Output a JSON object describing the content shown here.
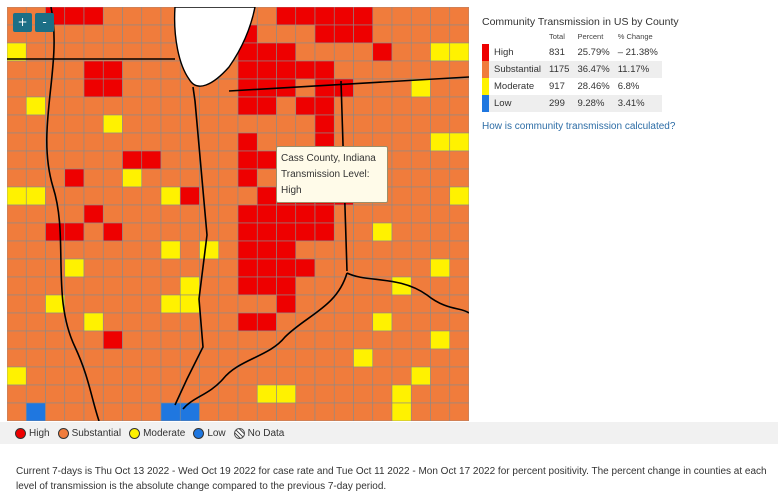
{
  "zoom": {
    "in_label": "+",
    "out_label": "-"
  },
  "tooltip": {
    "county": "Cass County, Indiana",
    "level_line": "Transmission Level: High"
  },
  "legend_panel": {
    "title": "Community Transmission in US by County",
    "columns": [
      "",
      "Total",
      "Percent",
      "% Change"
    ],
    "rows": [
      {
        "level": "High",
        "total": "831",
        "percent": "25.79%",
        "change": "– 21.38%",
        "color": "#ee0000"
      },
      {
        "level": "Substantial",
        "total": "1175",
        "percent": "36.47%",
        "change": "11.17%",
        "color": "#f07c3c"
      },
      {
        "level": "Moderate",
        "total": "917",
        "percent": "28.46%",
        "change": "6.8%",
        "color": "#fff200"
      },
      {
        "level": "Low",
        "total": "299",
        "percent": "9.28%",
        "change": "3.41%",
        "color": "#1f77e0"
      }
    ],
    "link": "How is community transmission calculated?"
  },
  "map_legend": {
    "items": [
      {
        "label": "High",
        "color": "#ee0000"
      },
      {
        "label": "Substantial",
        "color": "#f07c3c"
      },
      {
        "label": "Moderate",
        "color": "#fff200"
      },
      {
        "label": "Low",
        "color": "#1f77e0"
      },
      {
        "label": "No Data",
        "pattern": "hatched"
      }
    ]
  },
  "footnote": "Current 7-days is Thu Oct 13 2022 - Wed Oct 19 2022 for case rate and Tue Oct 11 2022 - Mon Oct 17 2022 for percent positivity. The percent change in counties at each level of transmission is the absolute change compared to the previous 7-day period.",
  "colors": {
    "high": "#ee0000",
    "substantial": "#f07c3c",
    "moderate": "#fff200",
    "low": "#1f77e0",
    "county_border": "#8a8a8a",
    "state_border": "#000000",
    "zoom_button": "#1c6f86"
  },
  "map_cells": [
    "SSHHHSSSSHHHSSHHHHHSSSSS",
    "SSSSSSSSSSSHHSSSHHHSSSSS",
    "MSSSSSSSSSSSHHHSSSSHSSMM",
    "SSSSHHSSSSSSHHHHHSSSSSSS",
    "SSSSHHSSSSSSHHHSHHSSSMSS",
    "SMSSSSSSSSSSHHSHHSSSSSSS",
    "SSSSSMSSSSSSSSSSHSSSSSSS",
    "SSSSSSSSSSSSHSSSHSSSSSMM",
    "SSSSSSHHSSSSHHSSHSSSSSSS",
    "SSSHSSMSSSSSHSHHHHSSSSSS",
    "MMSSSSSSMHSSSHHHHHSSSSSM",
    "SSSSHSSSSSSSHHHHHSSSSSSS",
    "SSHHSHSSSSSSHHHHHSSMSSSS",
    "SSSSSSSSMSMSHHHSSSSSSSSS",
    "SSSMSSSSSSSSHHHHSSSSSSMS",
    "SSSSSSSSSMSSHHHSSSSSMSSS",
    "SSMSSSSSMMSSSSHSSSSSSSSS",
    "SSSSMSSSSSSSHHSSSSSMSSSS",
    "SSSSSHSSSSSSSSSSSSSSSSMS",
    "SSSSSSSSSSSSSSSSSSMSSSSS",
    "MSSSSSSSSSSSSSSSSSSSSMSS",
    "SSSSSSSSSSSSSMMSSSSSMSSS",
    "SLSSSSSSLLSSSSSSSSSSMSSS"
  ]
}
